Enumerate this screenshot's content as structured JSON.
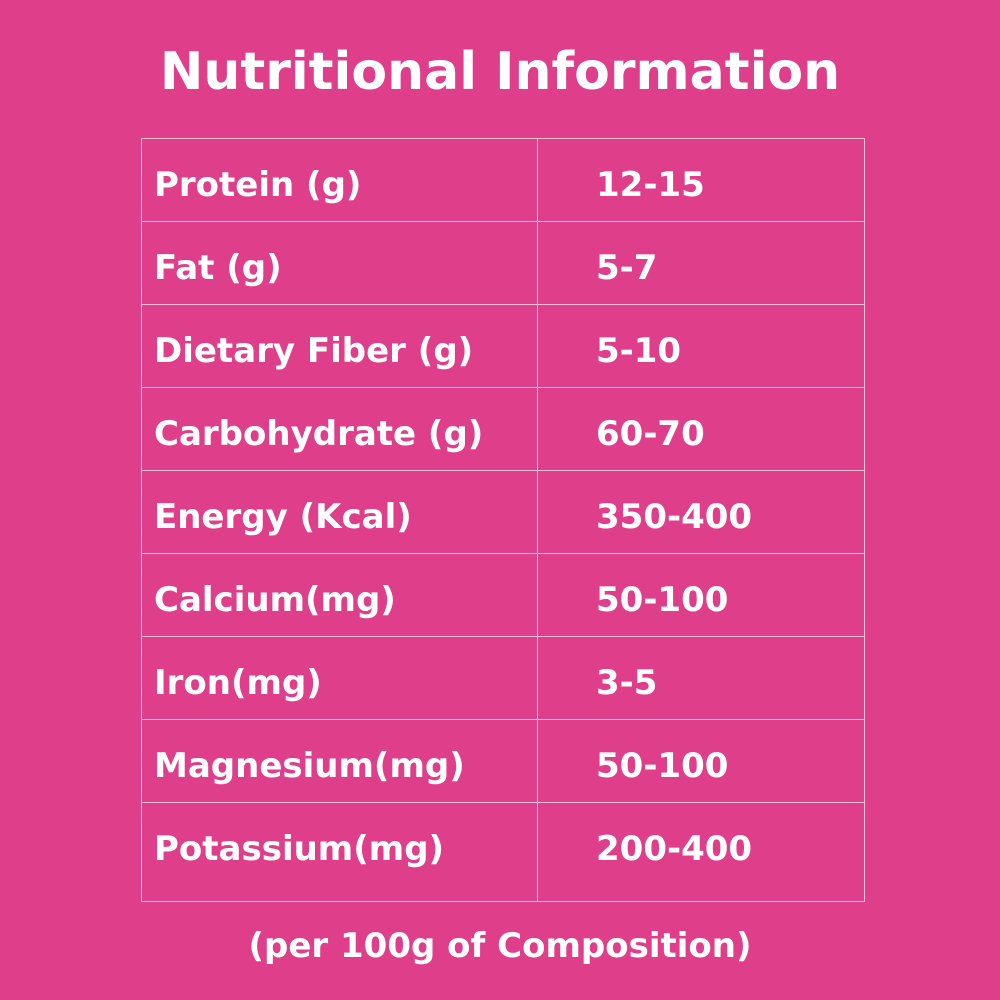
{
  "header": {
    "title": "Nutritional Information"
  },
  "table": {
    "rows": [
      [
        "Protein (g)",
        "12-15"
      ],
      [
        "Fat (g)",
        "5-7"
      ],
      [
        "Dietary Fiber (g)",
        "5-10"
      ],
      [
        "Carbohydrate (g)",
        "60-70"
      ],
      [
        "Energy (Kcal)",
        "350-400"
      ],
      [
        "Calcium(mg)",
        "50-100"
      ],
      [
        "Iron(mg)",
        "3-5"
      ],
      [
        "Magnesium(mg)",
        "50-100"
      ],
      [
        "Potassium(mg)",
        "200-400"
      ]
    ]
  },
  "footer": {
    "note": "(per 100g of Composition)"
  }
}
